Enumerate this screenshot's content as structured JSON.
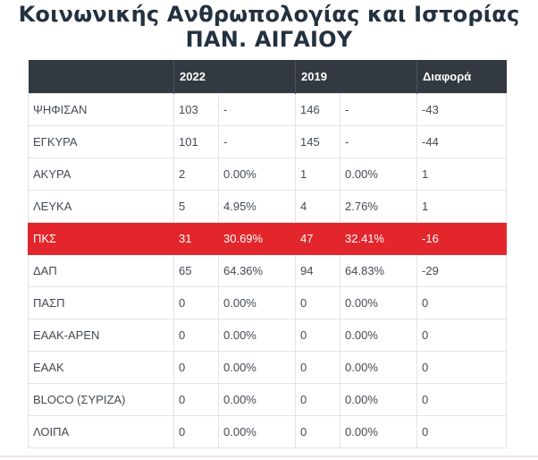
{
  "title": {
    "line1": "Κοινωνικής Ανθρωπολογίας και Ιστορίας",
    "line2": "ΠΑΝ. ΑΙΓΑΙΟΥ"
  },
  "table": {
    "headers": [
      "",
      "2022",
      "",
      "2019",
      "",
      "Διαφορά"
    ],
    "rows": [
      {
        "label": "ΨΗΦΙΣΑΝ",
        "v2022": "103",
        "p2022": "-",
        "v2019": "146",
        "p2019": "-",
        "diff": "-43"
      },
      {
        "label": "ΕΓΚΥΡΑ",
        "v2022": "101",
        "p2022": "-",
        "v2019": "145",
        "p2019": "-",
        "diff": "-44"
      },
      {
        "label": "ΑΚΥΡΑ",
        "v2022": "2",
        "p2022": "0.00%",
        "v2019": "1",
        "p2019": "0.00%",
        "diff": "1"
      },
      {
        "label": "ΛΕΥΚΑ",
        "v2022": "5",
        "p2022": "4.95%",
        "v2019": "4",
        "p2019": "2.76%",
        "diff": "1"
      },
      {
        "label": "ΠΚΣ",
        "v2022": "31",
        "p2022": "30.69%",
        "v2019": "47",
        "p2019": "32.41%",
        "diff": "-16",
        "highlight": true
      },
      {
        "label": "ΔΑΠ",
        "v2022": "65",
        "p2022": "64.36%",
        "v2019": "94",
        "p2019": "64.83%",
        "diff": "-29"
      },
      {
        "label": "ΠΑΣΠ",
        "v2022": "0",
        "p2022": "0.00%",
        "v2019": "0",
        "p2019": "0.00%",
        "diff": "0"
      },
      {
        "label": "ΕΑΑΚ-ΑΡΕΝ",
        "v2022": "0",
        "p2022": "0.00%",
        "v2019": "0",
        "p2019": "0.00%",
        "diff": "0"
      },
      {
        "label": "ΕΑΑΚ",
        "v2022": "0",
        "p2022": "0.00%",
        "v2019": "0",
        "p2019": "0.00%",
        "diff": "0"
      },
      {
        "label": "BLOCO (ΣΥΡΙΖΑ)",
        "v2022": "0",
        "p2022": "0.00%",
        "v2019": "0",
        "p2019": "0.00%",
        "diff": "0"
      },
      {
        "label": "ΛΟΙΠΑ",
        "v2022": "0",
        "p2022": "0.00%",
        "v2019": "0",
        "p2019": "0.00%",
        "diff": "0"
      }
    ]
  },
  "colors": {
    "header_bg": "#323941",
    "highlight_bg": "#e3262b",
    "title_text": "#233140"
  }
}
